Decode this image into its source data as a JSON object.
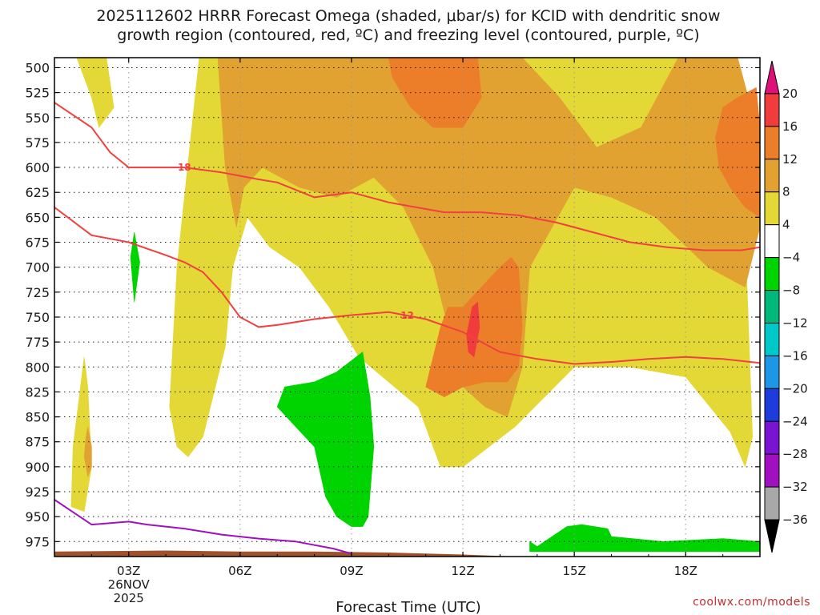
{
  "chart_data": {
    "type": "time-height",
    "title_lines": [
      "2025112602 HRRR Forecast Omega (shaded, μbar/s) for KCID with dendritic snow",
      "growth region (contoured, red, ºC) and freezing level (contoured, purple, ºC)"
    ],
    "xlabel": "Forecast Time (UTC)",
    "credit": "coolwx.com/models",
    "x_range_hours": [
      1.0,
      20.0
    ],
    "x_ticks": [
      {
        "hour": 3,
        "label": "03Z"
      },
      {
        "hour": 6,
        "label": "06Z"
      },
      {
        "hour": 9,
        "label": "09Z"
      },
      {
        "hour": 12,
        "label": "12Z"
      },
      {
        "hour": 15,
        "label": "15Z"
      },
      {
        "hour": 18,
        "label": "18Z"
      }
    ],
    "date_label": [
      "26NOV",
      "2025"
    ],
    "y_range_mb": [
      490,
      990
    ],
    "y_ticks": [
      500,
      525,
      550,
      575,
      600,
      625,
      650,
      675,
      700,
      725,
      750,
      775,
      800,
      825,
      850,
      875,
      900,
      925,
      950,
      975
    ],
    "colorbar": {
      "labels": [
        "20",
        "16",
        "12",
        "8",
        "4",
        "−4",
        "−8",
        "−12",
        "−16",
        "−20",
        "−24",
        "−28",
        "−32",
        "−36"
      ],
      "colors": [
        "#e0107a",
        "#f03c3c",
        "#ec7e2a",
        "#e2a232",
        "#e4d836",
        "#ffffff",
        "#00d400",
        "#00b87a",
        "#00c8c8",
        "#1e96e6",
        "#1e3cdc",
        "#7a14d2",
        "#a010c0",
        "#a8a8a8",
        "#000000"
      ]
    },
    "omega_levels": [
      {
        "name": "omega-4to8",
        "color": "#e4d836",
        "regions": [
          [
            [
              1.45,
              940
            ],
            [
              1.5,
              880
            ],
            [
              1.7,
              820
            ],
            [
              1.8,
              790
            ],
            [
              1.9,
              820
            ],
            [
              2.0,
              900
            ],
            [
              1.8,
              945
            ]
          ],
          [
            [
              1.6,
              490
            ],
            [
              2.4,
              490
            ],
            [
              2.6,
              540
            ],
            [
              2.2,
              560
            ],
            [
              2.0,
              530
            ]
          ],
          [
            [
              4.1,
              840
            ],
            [
              4.3,
              700
            ],
            [
              4.9,
              490
            ],
            [
              17.5,
              490
            ],
            [
              18.9,
              490
            ],
            [
              19.5,
              560
            ],
            [
              19.8,
              870
            ],
            [
              19.6,
              900
            ],
            [
              19.2,
              865
            ],
            [
              18.0,
              810
            ],
            [
              16.5,
              800
            ],
            [
              15.0,
              800
            ],
            [
              13.4,
              860
            ],
            [
              12.0,
              900
            ],
            [
              11.4,
              900
            ],
            [
              10.8,
              840
            ],
            [
              9.2,
              790
            ],
            [
              8.4,
              740
            ],
            [
              7.6,
              700
            ],
            [
              6.8,
              680
            ],
            [
              6.2,
              650
            ],
            [
              5.8,
              700
            ],
            [
              5.6,
              780
            ],
            [
              5.0,
              870
            ],
            [
              4.6,
              890
            ],
            [
              4.3,
              880
            ]
          ]
        ]
      },
      {
        "name": "omega-8to12",
        "color": "#e2a232",
        "regions": [
          [
            [
              5.4,
              490
            ],
            [
              13.6,
              490
            ],
            [
              14.6,
              530
            ],
            [
              15.6,
              580
            ],
            [
              16.8,
              560
            ],
            [
              17.8,
              490
            ],
            [
              19.4,
              490
            ],
            [
              19.9,
              560
            ],
            [
              20.0,
              660
            ],
            [
              19.6,
              720
            ],
            [
              18.6,
              700
            ],
            [
              17.2,
              650
            ],
            [
              16.0,
              630
            ],
            [
              15.0,
              620
            ],
            [
              13.8,
              700
            ],
            [
              13.6,
              800
            ],
            [
              13.2,
              850
            ],
            [
              12.6,
              840
            ],
            [
              12.0,
              820
            ],
            [
              11.6,
              760
            ],
            [
              11.2,
              700
            ],
            [
              10.4,
              640
            ],
            [
              9.6,
              610
            ],
            [
              8.6,
              630
            ],
            [
              7.6,
              620
            ],
            [
              6.6,
              600
            ],
            [
              6.1,
              620
            ],
            [
              5.9,
              660
            ],
            [
              5.6,
              600
            ]
          ],
          [
            [
              1.9,
              860
            ],
            [
              2.0,
              880
            ],
            [
              2.0,
              900
            ],
            [
              1.9,
              910
            ],
            [
              1.8,
              890
            ],
            [
              1.85,
              870
            ]
          ]
        ]
      },
      {
        "name": "omega-12to16",
        "color": "#ec7e2a",
        "regions": [
          [
            [
              10.0,
              490
            ],
            [
              12.4,
              490
            ],
            [
              12.5,
              530
            ],
            [
              12.0,
              560
            ],
            [
              11.2,
              560
            ],
            [
              10.6,
              540
            ],
            [
              10.1,
              510
            ]
          ],
          [
            [
              11.0,
              820
            ],
            [
              11.4,
              760
            ],
            [
              11.6,
              740
            ],
            [
              12.0,
              740
            ],
            [
              12.5,
              720
            ],
            [
              13.0,
              700
            ],
            [
              13.3,
              690
            ],
            [
              13.5,
              700
            ],
            [
              13.6,
              760
            ],
            [
              13.5,
              800
            ],
            [
              13.2,
              815
            ],
            [
              12.6,
              815
            ],
            [
              12.0,
              820
            ],
            [
              11.5,
              830
            ]
          ],
          [
            [
              18.8,
              570
            ],
            [
              19.0,
              540
            ],
            [
              19.4,
              530
            ],
            [
              19.9,
              520
            ],
            [
              20.0,
              560
            ],
            [
              20.0,
              650
            ],
            [
              19.6,
              640
            ],
            [
              19.2,
              620
            ],
            [
              18.9,
              600
            ]
          ]
        ]
      },
      {
        "name": "omega-16to20",
        "color": "#f03c3c",
        "regions": [
          [
            [
              12.1,
              768
            ],
            [
              12.25,
              740
            ],
            [
              12.4,
              735
            ],
            [
              12.45,
              760
            ],
            [
              12.3,
              790
            ],
            [
              12.15,
              785
            ]
          ]
        ]
      },
      {
        "name": "omega-neg4to-8",
        "color": "#00d400",
        "regions": [
          [
            [
              3.05,
              690
            ],
            [
              3.15,
              665
            ],
            [
              3.3,
              695
            ],
            [
              3.15,
              735
            ]
          ],
          [
            [
              7.0,
              840
            ],
            [
              7.2,
              820
            ],
            [
              8.0,
              815
            ],
            [
              8.6,
              805
            ],
            [
              9.3,
              785
            ],
            [
              9.5,
              830
            ],
            [
              9.6,
              880
            ],
            [
              9.45,
              950
            ],
            [
              9.3,
              960
            ],
            [
              9.0,
              960
            ],
            [
              8.6,
              950
            ],
            [
              8.3,
              930
            ],
            [
              8.0,
              880
            ],
            [
              7.5,
              860
            ]
          ],
          [
            [
              13.8,
              975
            ],
            [
              14.0,
              980
            ],
            [
              14.8,
              960
            ],
            [
              15.2,
              958
            ],
            [
              15.9,
              962
            ],
            [
              16.0,
              970
            ],
            [
              17.4,
              975
            ],
            [
              19.0,
              972
            ],
            [
              20.0,
              975
            ],
            [
              20.0,
              985
            ],
            [
              13.8,
              985
            ]
          ]
        ]
      }
    ],
    "contours": [
      {
        "name": "dgz-minus18",
        "color": "#f04040",
        "label": "18",
        "label_hour": 4.5,
        "points": [
          [
            1.0,
            535
          ],
          [
            2.0,
            560
          ],
          [
            2.5,
            585
          ],
          [
            3.0,
            600
          ],
          [
            3.5,
            600
          ],
          [
            4.5,
            600
          ],
          [
            5.5,
            605
          ],
          [
            6.5,
            612
          ],
          [
            7.0,
            615
          ],
          [
            8.0,
            630
          ],
          [
            9.0,
            625
          ],
          [
            10.0,
            635
          ],
          [
            11.5,
            645
          ],
          [
            12.5,
            645
          ],
          [
            13.5,
            648
          ],
          [
            14.5,
            655
          ],
          [
            15.5,
            665
          ],
          [
            16.5,
            675
          ],
          [
            17.5,
            680
          ],
          [
            18.5,
            683
          ],
          [
            19.5,
            683
          ],
          [
            20.0,
            680
          ]
        ]
      },
      {
        "name": "dgz-minus12",
        "color": "#f04040",
        "label": "12",
        "label_hour": 10.5,
        "points": [
          [
            1.0,
            640
          ],
          [
            2.0,
            668
          ],
          [
            3.0,
            675
          ],
          [
            4.0,
            688
          ],
          [
            4.5,
            695
          ],
          [
            5.0,
            705
          ],
          [
            5.5,
            725
          ],
          [
            6.0,
            750
          ],
          [
            6.5,
            760
          ],
          [
            7.0,
            758
          ],
          [
            8.0,
            752
          ],
          [
            9.0,
            748
          ],
          [
            10.0,
            745
          ],
          [
            11.0,
            752
          ],
          [
            12.0,
            765
          ],
          [
            13.0,
            785
          ],
          [
            14.0,
            792
          ],
          [
            15.0,
            797
          ],
          [
            16.0,
            795
          ],
          [
            17.0,
            792
          ],
          [
            18.0,
            790
          ],
          [
            19.0,
            792
          ],
          [
            20.0,
            796
          ]
        ]
      },
      {
        "name": "freezing-level",
        "color": "#a010c0",
        "label": "",
        "label_hour": 0,
        "points": [
          [
            1.0,
            933
          ],
          [
            2.0,
            958
          ],
          [
            3.0,
            955
          ],
          [
            3.5,
            958
          ],
          [
            4.5,
            962
          ],
          [
            5.5,
            968
          ],
          [
            6.5,
            972
          ],
          [
            7.5,
            975
          ],
          [
            8.5,
            982
          ],
          [
            9.0,
            987
          ]
        ]
      }
    ],
    "terrain": {
      "color": "#a0522d",
      "points": [
        [
          1.0,
          990
        ],
        [
          20.0,
          990
        ],
        [
          20.0,
          994
        ],
        [
          17.0,
          993
        ],
        [
          14.0,
          991
        ],
        [
          12.0,
          988
        ],
        [
          10.0,
          986
        ],
        [
          8.0,
          985
        ],
        [
          6.0,
          985
        ],
        [
          4.0,
          984
        ],
        [
          1.0,
          985
        ]
      ]
    }
  }
}
